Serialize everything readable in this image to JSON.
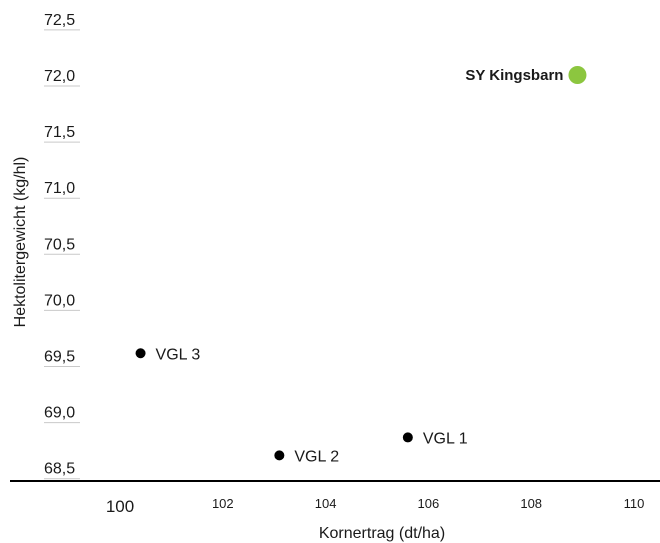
{
  "chart_data": {
    "type": "scatter",
    "title": "",
    "xlabel": "Kornertrag (dt/ha)",
    "ylabel": "Hektolitergewicht (kg/hl)",
    "xlim": [
      98.4,
      111.0
    ],
    "ylim": [
      68.45,
      72.6
    ],
    "x_ticks": [
      "100",
      "102",
      "104",
      "106",
      "108",
      "110"
    ],
    "x_tick_values": [
      100,
      102,
      104,
      106,
      108,
      110
    ],
    "y_ticks": [
      "72,5",
      "72,0",
      "71,5",
      "71,0",
      "70,5",
      "70,0",
      "69,5",
      "69,0",
      "68,5"
    ],
    "y_tick_values": [
      72.5,
      72.0,
      71.5,
      71.0,
      70.5,
      70.0,
      69.5,
      69.0,
      68.5
    ],
    "grid": false,
    "points": [
      {
        "label": "SY Kingsbarn",
        "x": 108.9,
        "y": 72.0,
        "color": "#8cc63f",
        "highlight": true
      },
      {
        "label": "VGL 1",
        "x": 105.6,
        "y": 68.77,
        "color": "#000000",
        "highlight": false
      },
      {
        "label": "VGL 2",
        "x": 103.1,
        "y": 68.61,
        "color": "#000000",
        "highlight": false
      },
      {
        "label": "VGL 3",
        "x": 100.4,
        "y": 69.52,
        "color": "#000000",
        "highlight": false
      }
    ]
  }
}
